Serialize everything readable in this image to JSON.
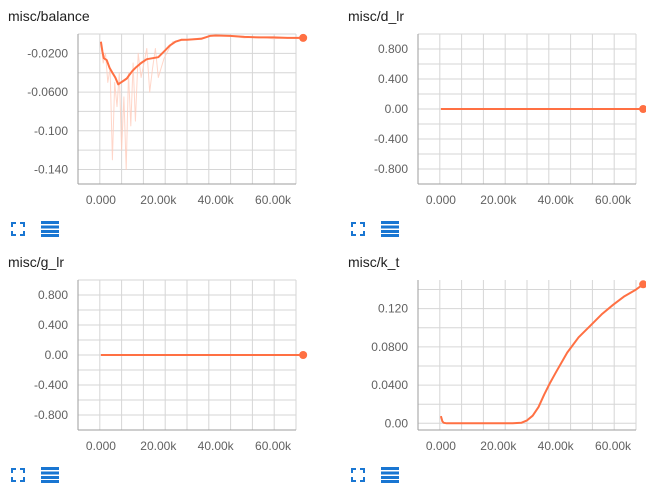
{
  "colors": {
    "line": "#ff7043",
    "raw": "#ffccbc",
    "grid": "#d6d6d6",
    "axis": "#9e9e9e",
    "icon": "#1976d2"
  },
  "chart_data": [
    {
      "id": "balance",
      "type": "line",
      "title": "misc/balance",
      "xlim": [
        -8000,
        68000
      ],
      "ylim": [
        -0.155,
        0.0
      ],
      "x_ticks": [
        0,
        20000,
        40000,
        60000
      ],
      "x_tick_labels": [
        "0.000",
        "20.00k",
        "40.00k",
        "60.00k"
      ],
      "y_ticks": [
        -0.02,
        -0.06,
        -0.1,
        -0.14
      ],
      "y_tick_labels": [
        "-0.0200",
        "-0.0600",
        "-0.100",
        "-0.140"
      ],
      "series": [
        {
          "name": "raw",
          "style": "raw",
          "x": [
            0,
            800,
            1600,
            2400,
            3200,
            4000,
            4800,
            5600,
            6400,
            7200,
            8000,
            8800,
            9600,
            10400,
            11200,
            12000,
            13000,
            14000,
            15000,
            16000,
            17000,
            18000,
            19000,
            20000,
            22000,
            25000,
            30000,
            35000,
            40000,
            45000,
            50000,
            55000,
            60000,
            65000,
            70500
          ],
          "y": [
            -0.01,
            -0.03,
            -0.02,
            -0.05,
            -0.035,
            -0.13,
            -0.05,
            -0.075,
            -0.04,
            -0.12,
            -0.065,
            -0.14,
            -0.04,
            -0.095,
            -0.03,
            -0.09,
            -0.02,
            -0.045,
            -0.03,
            -0.015,
            -0.06,
            -0.035,
            -0.015,
            -0.045,
            -0.025,
            -0.008,
            -0.006,
            -0.004,
            -0.001,
            -0.002,
            -0.004,
            -0.003,
            -0.005,
            -0.004,
            -0.005
          ]
        },
        {
          "name": "smoothed",
          "style": "smooth",
          "x": [
            0,
            500,
            1000,
            2000,
            3000,
            4000,
            5000,
            6000,
            7000,
            8000,
            9000,
            10000,
            11000,
            12000,
            14000,
            16000,
            18000,
            20000,
            22000,
            24000,
            26000,
            28000,
            30000,
            35000,
            38000,
            40000,
            45000,
            50000,
            55000,
            60000,
            65000,
            70500
          ],
          "y": [
            -0.008,
            -0.018,
            -0.025,
            -0.027,
            -0.035,
            -0.04,
            -0.045,
            -0.052,
            -0.05,
            -0.048,
            -0.046,
            -0.042,
            -0.038,
            -0.035,
            -0.03,
            -0.026,
            -0.025,
            -0.024,
            -0.018,
            -0.012,
            -0.008,
            -0.006,
            -0.006,
            -0.005,
            -0.002,
            -0.0015,
            -0.002,
            -0.003,
            -0.0035,
            -0.0035,
            -0.004,
            -0.004
          ]
        }
      ]
    },
    {
      "id": "d_lr",
      "type": "line",
      "title": "misc/d_lr",
      "xlim": [
        -8000,
        68000
      ],
      "ylim": [
        -1.0,
        1.0
      ],
      "x_ticks": [
        0,
        20000,
        40000,
        60000
      ],
      "x_tick_labels": [
        "0.000",
        "20.00k",
        "40.00k",
        "60.00k"
      ],
      "y_ticks": [
        0.8,
        0.4,
        0.0,
        -0.4,
        -0.8
      ],
      "y_tick_labels": [
        "0.800",
        "0.400",
        "0.00",
        "-0.400",
        "-0.800"
      ],
      "series": [
        {
          "name": "d_lr",
          "style": "smooth",
          "x": [
            0,
            70500
          ],
          "y": [
            0,
            0
          ]
        }
      ]
    },
    {
      "id": "g_lr",
      "type": "line",
      "title": "misc/g_lr",
      "xlim": [
        -8000,
        68000
      ],
      "ylim": [
        -1.0,
        1.0
      ],
      "x_ticks": [
        0,
        20000,
        40000,
        60000
      ],
      "x_tick_labels": [
        "0.000",
        "20.00k",
        "40.00k",
        "60.00k"
      ],
      "y_ticks": [
        0.8,
        0.4,
        0.0,
        -0.4,
        -0.8
      ],
      "y_tick_labels": [
        "0.800",
        "0.400",
        "0.00",
        "-0.400",
        "-0.800"
      ],
      "series": [
        {
          "name": "g_lr",
          "style": "smooth",
          "x": [
            0,
            70500
          ],
          "y": [
            0,
            0
          ]
        }
      ]
    },
    {
      "id": "k_t",
      "type": "line",
      "title": "misc/k_t",
      "xlim": [
        -8000,
        68000
      ],
      "ylim": [
        -0.007,
        0.15
      ],
      "x_ticks": [
        0,
        20000,
        40000,
        60000
      ],
      "x_tick_labels": [
        "0.000",
        "20.00k",
        "40.00k",
        "60.00k"
      ],
      "y_ticks": [
        0.12,
        0.08,
        0.04,
        0.0
      ],
      "y_tick_labels": [
        "0.120",
        "0.0800",
        "0.0400",
        "0.00"
      ],
      "series": [
        {
          "name": "k_t",
          "style": "smooth",
          "x": [
            0,
            500,
            1000,
            2000,
            5000,
            10000,
            15000,
            20000,
            25000,
            28000,
            30000,
            32000,
            34000,
            36000,
            38000,
            40000,
            44000,
            48000,
            52000,
            56000,
            60000,
            64000,
            68000,
            70500
          ],
          "y": [
            0.0075,
            0.002,
            0.0005,
            0.0,
            0.0,
            0.0,
            0.0,
            0.0,
            0.0,
            0.0005,
            0.003,
            0.008,
            0.017,
            0.03,
            0.042,
            0.053,
            0.074,
            0.09,
            0.102,
            0.114,
            0.124,
            0.133,
            0.14,
            0.1455
          ]
        }
      ]
    }
  ]
}
